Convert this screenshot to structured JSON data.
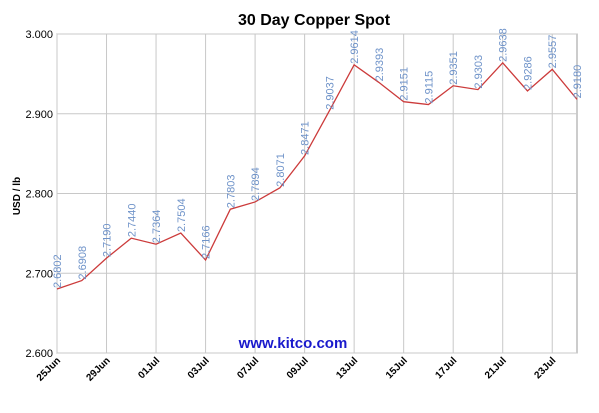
{
  "chart_data": {
    "type": "line",
    "title": "30 Day Copper Spot",
    "y_label": "USD / lb",
    "watermark": "www.kitco.com",
    "categories": [
      "25Jun",
      null,
      "29Jun",
      null,
      "01Jul",
      null,
      "03Jul",
      null,
      "07Jul",
      null,
      "09Jul",
      null,
      "13Jul",
      null,
      "15Jul",
      null,
      "17Jul",
      null,
      "21Jul",
      null,
      "23Jul",
      null
    ],
    "series": [
      {
        "name": "Copper",
        "color": "#cc3b3b",
        "values": [
          2.6802,
          2.6908,
          2.719,
          2.744,
          2.7364,
          2.7504,
          2.7166,
          2.7803,
          2.7894,
          2.8071,
          2.8471,
          2.9037,
          2.9614,
          2.9393,
          2.9151,
          2.9115,
          2.9351,
          2.9303,
          2.9638,
          2.9286,
          2.9557,
          2.918
        ],
        "value_labels": [
          "2.6802",
          "2.6908",
          "2.7190",
          "2.7440",
          "2.7364",
          "2.7504",
          "2.7166",
          "2.7803",
          "2.7894",
          "2.8071",
          "2.8471",
          "2.9037",
          "2.9614",
          "2.9393",
          "2.9151",
          "2.9115",
          "2.9351",
          "2.9303",
          "2.9638",
          "2.9286",
          "2.9557",
          "2.9180"
        ]
      }
    ],
    "value_label_color": "#6f93c9",
    "ylim": [
      2.6,
      3.0
    ],
    "yticks": [
      {
        "value": 2.6,
        "label": "2.600"
      },
      {
        "value": 2.7,
        "label": "2.700"
      },
      {
        "value": 2.8,
        "label": "2.800"
      },
      {
        "value": 2.9,
        "label": "2.900"
      },
      {
        "value": 3.0,
        "label": "3.000"
      }
    ],
    "grid": true
  }
}
